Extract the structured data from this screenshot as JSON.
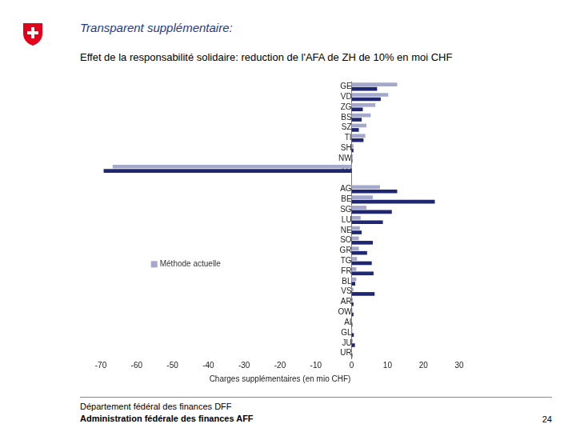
{
  "header": {
    "title": "Transparent supplémentaire:",
    "subtitle": "Effet de la responsabilité solidaire: reduction de l'AFA de ZH de 10% en moi CHF"
  },
  "chart_data": {
    "type": "bar",
    "orientation": "horizontal",
    "x_label": "Charges supplémentaires (en mio CHF)",
    "categories": [
      "GE",
      "VD",
      "ZG",
      "BS",
      "SZ",
      "TI",
      "SH",
      "NW",
      "ZH",
      null,
      "AG",
      "BE",
      "SG",
      "LU",
      "NE",
      "SO",
      "GR",
      "TG",
      "FR",
      "BL",
      "VS",
      "AR",
      "OW",
      "AI",
      "GL",
      "JU",
      "UR"
    ],
    "series": [
      {
        "name": "Méthode actuelle",
        "color": "#a3a8cc",
        "values": [
          12.7,
          10.2,
          6.6,
          5.3,
          4.1,
          3.8,
          0.5,
          0.3,
          -66.7,
          null,
          7.9,
          5.9,
          4.1,
          2.5,
          2.3,
          2.0,
          2.0,
          1.5,
          1.3,
          1.3,
          0.5,
          0.3,
          0.2,
          0.1,
          0.2,
          0.3,
          0.1
        ]
      },
      {
        "color": "#1f2770",
        "values": [
          7.1,
          8.1,
          3.1,
          2.8,
          2.0,
          3.3,
          0.5,
          0.2,
          -69.2,
          null,
          12.7,
          23.2,
          11.2,
          8.7,
          2.8,
          5.9,
          4.3,
          5.6,
          6.1,
          1.0,
          6.4,
          0.5,
          0.5,
          0.2,
          0.6,
          0.9,
          0.2
        ]
      }
    ],
    "xlim": [
      -70,
      30
    ],
    "xticks": [
      -70,
      -60,
      -50,
      -40,
      -30,
      -20,
      -10,
      0,
      10,
      20,
      30
    ],
    "grid": false,
    "legend": "left"
  },
  "footer": {
    "department": "Département fédéral des finances DFF",
    "office": "Administration fédérale des finances AFF",
    "page": "24"
  }
}
